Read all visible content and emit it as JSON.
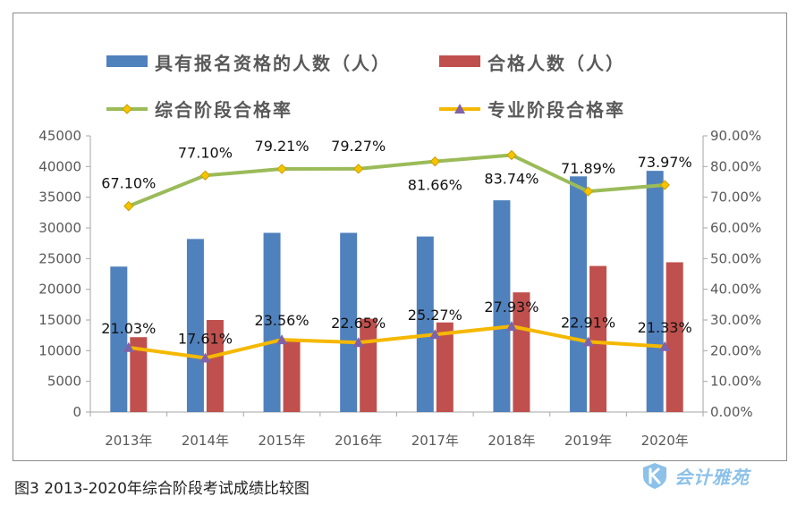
{
  "caption": "图3  2013-2020年综合阶段考试成绩比较图",
  "watermark": {
    "text": "会计雅苑",
    "icon": "shield-k-logo-icon",
    "color": "#2f8fd8"
  },
  "chart_data": {
    "type": "bar-line-combo",
    "categories": [
      "2013年",
      "2014年",
      "2015年",
      "2016年",
      "2017年",
      "2018年",
      "2019年",
      "2020年"
    ],
    "left_axis": {
      "min": 0,
      "max": 45000,
      "step": 5000,
      "ticks": [
        "0",
        "5000",
        "10000",
        "15000",
        "20000",
        "25000",
        "30000",
        "35000",
        "40000",
        "45000"
      ]
    },
    "right_axis": {
      "min": 0,
      "max": 0.9,
      "step": 0.1,
      "ticks": [
        "0.00%",
        "10.00%",
        "20.00%",
        "30.00%",
        "40.00%",
        "50.00%",
        "60.00%",
        "70.00%",
        "80.00%",
        "90.00%"
      ]
    },
    "legend_position": "top",
    "grid": false,
    "bar_series": [
      {
        "name": "具有报名资格的人数（人）",
        "color": "#4f81bd",
        "values": [
          23700,
          28200,
          29200,
          29200,
          28600,
          34500,
          38400,
          39300
        ]
      },
      {
        "name": "合格人数（人）",
        "color": "#c0504d",
        "values": [
          12200,
          15000,
          11800,
          15200,
          14600,
          19500,
          23800,
          24400
        ]
      }
    ],
    "line_series": [
      {
        "name": "综合阶段合格率",
        "color": "#9bbb59",
        "marker": "diamond",
        "marker_color": "#f5c400",
        "values": [
          0.671,
          0.771,
          0.7921,
          0.7927,
          0.8166,
          0.8374,
          0.7189,
          0.7397
        ],
        "labels": [
          "67.10%",
          "77.10%",
          "79.21%",
          "79.27%",
          "81.66%",
          "83.74%",
          "71.89%",
          "73.97%"
        ]
      },
      {
        "name": "专业阶段合格率",
        "color": "#f5b800",
        "marker": "triangle",
        "marker_color": "#7f62a8",
        "values": [
          0.2103,
          0.1761,
          0.2356,
          0.2265,
          0.2527,
          0.2793,
          0.2291,
          0.2133
        ],
        "labels": [
          "21.03%",
          "17.61%",
          "23.56%",
          "22.65%",
          "25.27%",
          "27.93%",
          "22.91%",
          "21.33%"
        ]
      }
    ]
  }
}
